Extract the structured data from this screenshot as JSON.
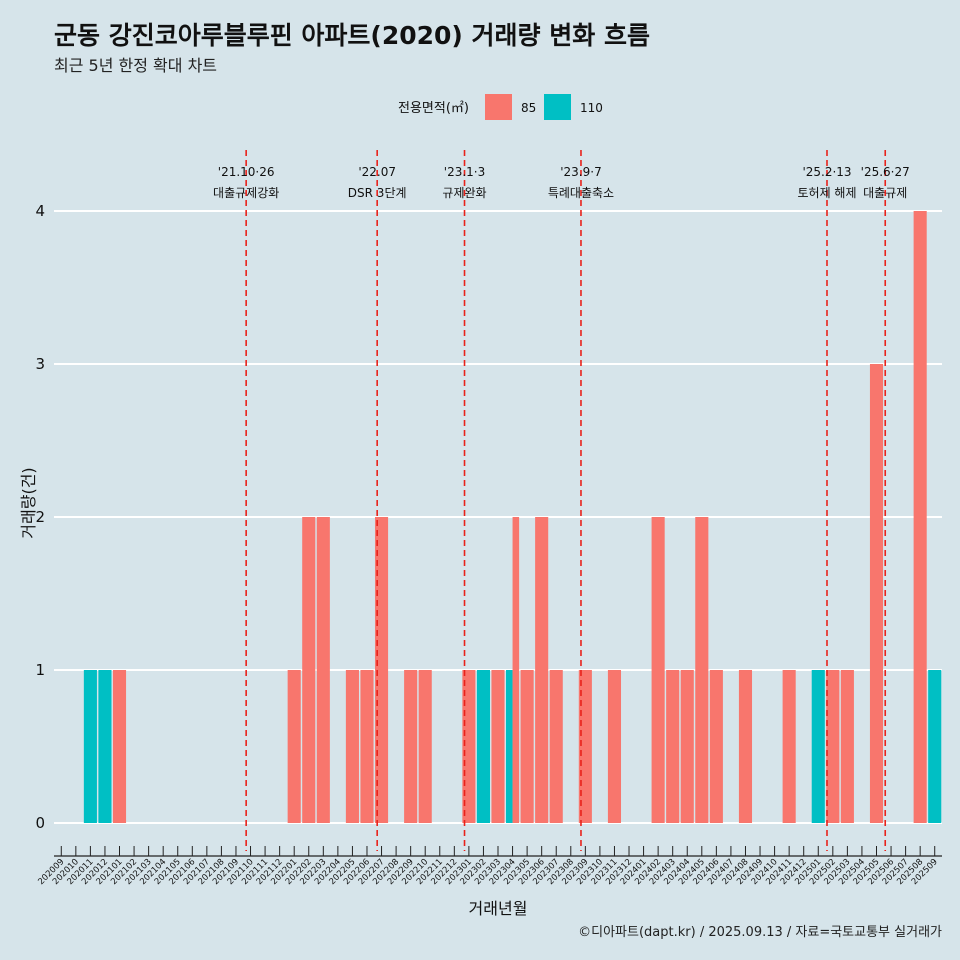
{
  "title": "군동 강진코아루블루핀 아파트(2020) 거래량 변화 흐름",
  "subtitle": "최근 5년 한정 확대 차트",
  "caption": "©디아파트(dapt.kr) / 2025.09.13 / 자료=국토교통부 실거래가",
  "colors": {
    "s85": "#f8766d",
    "s110": "#00bfc4",
    "background": "#d6e4ea",
    "grid": "#ffffff",
    "vline": "#e8221b"
  },
  "chart_data": {
    "type": "bar",
    "xlabel": "거래년월",
    "ylabel": "거래량(건)",
    "ylim": [
      0,
      4
    ],
    "yticks": [
      "0",
      "1",
      "2",
      "3",
      "4"
    ],
    "legend": {
      "title": "전용면적(㎡)",
      "position": "top"
    },
    "categories": [
      "202009",
      "202010",
      "202011",
      "202012",
      "202101",
      "202102",
      "202103",
      "202104",
      "202105",
      "202106",
      "202107",
      "202108",
      "202109",
      "202110",
      "202111",
      "202112",
      "202201",
      "202202",
      "202203",
      "202204",
      "202205",
      "202206",
      "202207",
      "202208",
      "202209",
      "202210",
      "202211",
      "202212",
      "202301",
      "202302",
      "202303",
      "202304",
      "202305",
      "202306",
      "202307",
      "202308",
      "202309",
      "202310",
      "202311",
      "202312",
      "202401",
      "202402",
      "202403",
      "202404",
      "202405",
      "202406",
      "202407",
      "202408",
      "202409",
      "202410",
      "202411",
      "202412",
      "202501",
      "202502",
      "202503",
      "202504",
      "202505",
      "202506",
      "202507",
      "202508",
      "202509"
    ],
    "series": [
      {
        "name": "85",
        "values": [
          0,
          0,
          0,
          0,
          1,
          0,
          0,
          0,
          0,
          0,
          0,
          0,
          0,
          0,
          0,
          0,
          1,
          2,
          2,
          0,
          1,
          1,
          2,
          0,
          1,
          1,
          0,
          0,
          1,
          0,
          1,
          2,
          1,
          2,
          1,
          0,
          1,
          0,
          1,
          0,
          0,
          2,
          1,
          1,
          2,
          1,
          0,
          1,
          0,
          0,
          1,
          0,
          0,
          1,
          1,
          0,
          3,
          0,
          0,
          4,
          0
        ]
      },
      {
        "name": "110",
        "values": [
          0,
          0,
          1,
          1,
          0,
          0,
          0,
          0,
          0,
          0,
          0,
          0,
          0,
          0,
          0,
          0,
          0,
          0,
          0,
          0,
          0,
          0,
          0,
          0,
          0,
          0,
          0,
          0,
          0,
          1,
          0,
          1,
          0,
          0,
          0,
          0,
          0,
          0,
          0,
          0,
          0,
          0,
          0,
          0,
          0,
          0,
          0,
          0,
          0,
          0,
          0,
          0,
          1,
          0,
          0,
          0,
          0,
          0,
          0,
          0,
          1
        ]
      }
    ],
    "annotations": [
      {
        "date": "'21.10·26",
        "label": "대출규제강화",
        "pos": 13.2
      },
      {
        "date": "'22.07",
        "label": "DSR 3단계",
        "pos": 22.2
      },
      {
        "date": "'23.1·3",
        "label": "규제완화",
        "pos": 28.2
      },
      {
        "date": "'23.9·7",
        "label": "특례대출축소",
        "pos": 36.2
      },
      {
        "date": "'25.2·13",
        "label": "토허제 해제",
        "pos": 53.1
      },
      {
        "date": "'25.6·27",
        "label": "대출규제",
        "pos": 57.1
      }
    ]
  }
}
